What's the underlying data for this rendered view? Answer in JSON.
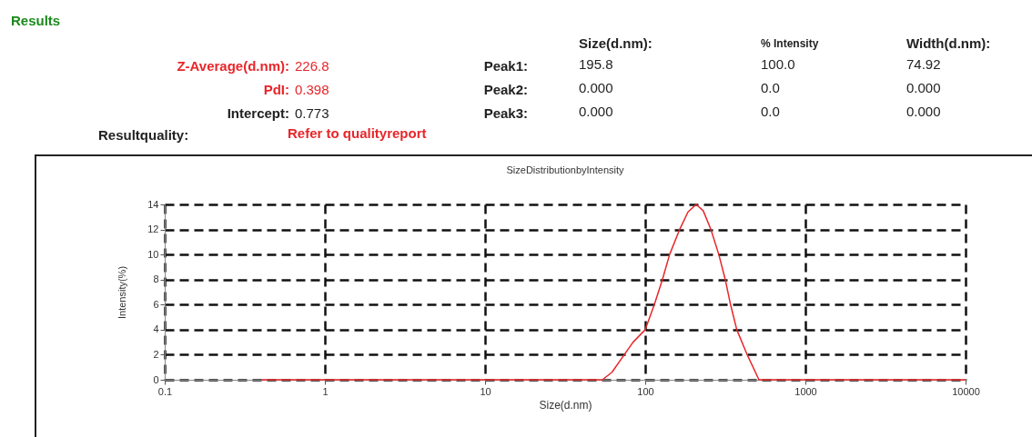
{
  "chart_data": {
    "type": "line",
    "title": "SizeDistributionbyIntensity",
    "xlabel": "Size(d.nm)",
    "ylabel": "Intensity(%)",
    "log": "x",
    "grid": true,
    "line_style": "solid",
    "marker": "none",
    "xlim": [
      0.1,
      10000
    ],
    "xticks": [
      0.1,
      1,
      10,
      100,
      1000,
      10000
    ],
    "ylim": [
      0,
      14
    ],
    "yticks": [
      0,
      2,
      4,
      6,
      8,
      10,
      12,
      14
    ],
    "series": [
      {
        "color": "#e8262a",
        "x": [
          0.4,
          1,
          10,
          54,
          62,
          74,
          84,
          100,
          114,
          128,
          142,
          164,
          185,
          208,
          230,
          257,
          288,
          316,
          341,
          373,
          433,
          513,
          1000,
          10000
        ],
        "values": [
          0,
          0,
          0,
          0,
          0.6,
          2,
          3,
          4,
          6,
          8,
          10,
          12,
          13.4,
          14,
          13.5,
          12,
          10,
          8,
          6,
          4,
          2,
          0,
          0,
          0
        ]
      }
    ],
    "annotations": [
      "Results",
      "Size(d.nm):",
      "% Intensity",
      "Width(d.nm):",
      "Z-Average(d.nm):",
      "226.8",
      "Peak1:",
      "195.8",
      "100.0",
      "74.92",
      "PdI:",
      "0.398",
      "Peak2:",
      "0.000",
      "0.0",
      "0.000",
      "Intercept:",
      "0.773",
      "Peak3:",
      "0.000",
      "0.0",
      "0.000",
      "Resultquality:",
      "Refer to qualityreport"
    ]
  }
}
